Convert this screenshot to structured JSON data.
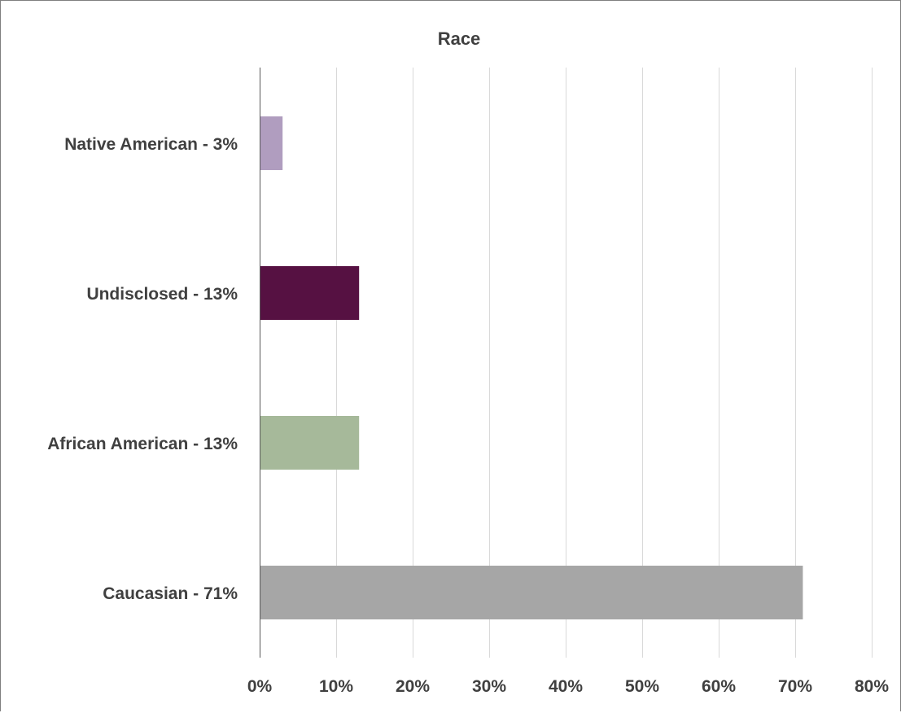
{
  "chart_data": {
    "type": "bar",
    "orientation": "horizontal",
    "title": "Race",
    "categories": [
      "Native American - 3%",
      "Undisclosed - 13%",
      "African American - 13%",
      "Caucasian - 71%"
    ],
    "values": [
      3,
      13,
      13,
      71
    ],
    "colors": [
      "#b09dbf",
      "#561142",
      "#a6b99a",
      "#a6a6a6"
    ],
    "xlim": [
      0,
      80
    ],
    "x_ticks": [
      0,
      10,
      20,
      30,
      40,
      50,
      60,
      70,
      80
    ],
    "x_tick_labels": [
      "0%",
      "10%",
      "20%",
      "30%",
      "40%",
      "50%",
      "60%",
      "70%",
      "80%"
    ],
    "xlabel": "",
    "ylabel": "",
    "grid": "vertical",
    "legend": "none"
  }
}
